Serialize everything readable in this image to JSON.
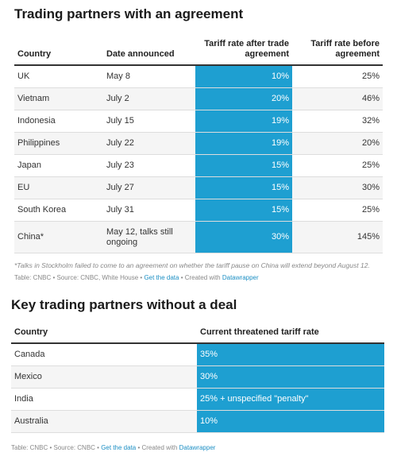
{
  "agreement": {
    "title": "Trading partners with an agreement",
    "headers": {
      "country": "Country",
      "date": "Date announced",
      "after": "Tariff rate after trade agreement",
      "before": "Tariff rate before agreement"
    },
    "rows": [
      {
        "country": "UK",
        "date": "May 8",
        "after": "10%",
        "before": "25%"
      },
      {
        "country": "Vietnam",
        "date": "July 2",
        "after": "20%",
        "before": "46%"
      },
      {
        "country": "Indonesia",
        "date": "July 15",
        "after": "19%",
        "before": "32%"
      },
      {
        "country": "Philippines",
        "date": "July 22",
        "after": "19%",
        "before": "20%"
      },
      {
        "country": "Japan",
        "date": "July 23",
        "after": "15%",
        "before": "25%"
      },
      {
        "country": "EU",
        "date": "July 27",
        "after": "15%",
        "before": "30%"
      },
      {
        "country": "South Korea",
        "date": "July 31",
        "after": "15%",
        "before": "25%"
      },
      {
        "country": "China*",
        "date": "May 12, talks still ongoing",
        "after": "30%",
        "before": "145%"
      }
    ],
    "footnote": "*Talks in Stockholm failed to come to an agreement on whether the tariff pause on China will extend beyond August 12.",
    "credit": {
      "prefix": "Table: CNBC • Source: CNBC, White House • ",
      "get_data": "Get the data",
      "mid": " • Created with ",
      "tool": "Datawrapper"
    }
  },
  "no_deal": {
    "title": "Key trading partners without a deal",
    "headers": {
      "country": "Country",
      "rate": "Current threatened tariff rate"
    },
    "rows": [
      {
        "country": "Canada",
        "rate": "35%"
      },
      {
        "country": "Mexico",
        "rate": "30%"
      },
      {
        "country": "India",
        "rate": "25% + unspecified \"penalty\""
      },
      {
        "country": "Australia",
        "rate": "10%"
      }
    ],
    "credit": {
      "prefix": "Table: CNBC • Source: CNBC • ",
      "get_data": "Get the data",
      "mid": " • Created with ",
      "tool": "Datawrapper"
    }
  },
  "colors": {
    "highlight": "#1e9fd1",
    "link": "#1c8fc4"
  },
  "chart_data": [
    {
      "type": "table",
      "title": "Trading partners with an agreement",
      "columns": [
        "Country",
        "Date announced",
        "Tariff rate after trade agreement",
        "Tariff rate before agreement"
      ],
      "rows": [
        [
          "UK",
          "May 8",
          "10%",
          "25%"
        ],
        [
          "Vietnam",
          "July 2",
          "20%",
          "46%"
        ],
        [
          "Indonesia",
          "July 15",
          "19%",
          "32%"
        ],
        [
          "Philippines",
          "July 22",
          "19%",
          "20%"
        ],
        [
          "Japan",
          "July 23",
          "15%",
          "25%"
        ],
        [
          "EU",
          "July 27",
          "15%",
          "30%"
        ],
        [
          "South Korea",
          "July 31",
          "15%",
          "25%"
        ],
        [
          "China*",
          "May 12, talks still ongoing",
          "30%",
          "145%"
        ]
      ]
    },
    {
      "type": "table",
      "title": "Key trading partners without a deal",
      "columns": [
        "Country",
        "Current threatened tariff rate"
      ],
      "rows": [
        [
          "Canada",
          "35%"
        ],
        [
          "Mexico",
          "30%"
        ],
        [
          "India",
          "25% + unspecified \"penalty\""
        ],
        [
          "Australia",
          "10%"
        ]
      ]
    }
  ]
}
